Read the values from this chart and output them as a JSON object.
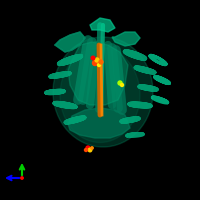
{
  "background_color": "#000000",
  "protein_color_main": "#00a878",
  "protein_color_dark": "#007a5a",
  "protein_color_light": "#00c890",
  "highlight_colors": [
    "#ff6600",
    "#ffdd00",
    "#ff0000",
    "#00ff00"
  ],
  "axis_x_color": "#0000ff",
  "axis_y_color": "#00cc00",
  "axis_origin_color": "#ff0000",
  "figsize": [
    2.0,
    2.0
  ],
  "dpi": 100
}
